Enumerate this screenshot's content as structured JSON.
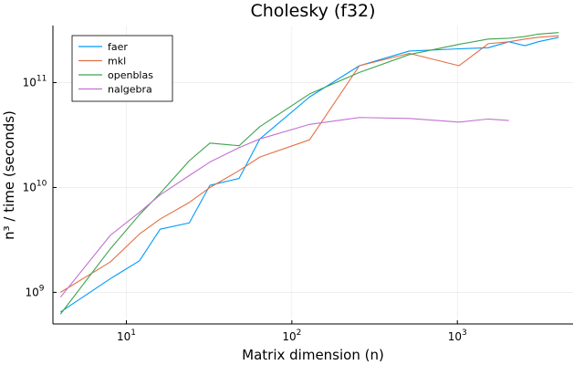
{
  "chart_data": {
    "type": "line",
    "title": "Cholesky (f32)",
    "xlabel": "Matrix dimension (n)",
    "ylabel": "n³ / time (seconds)",
    "xscale": "log",
    "yscale": "log",
    "xlim": [
      3.6,
      5000
    ],
    "ylim": [
      500000000,
      350000000000
    ],
    "x_ticks": [
      {
        "value": 10,
        "base": "10",
        "exp": "1"
      },
      {
        "value": 100,
        "base": "10",
        "exp": "2"
      },
      {
        "value": 1000,
        "base": "10",
        "exp": "3"
      }
    ],
    "y_ticks": [
      {
        "value": 1000000000,
        "base": "10",
        "exp": "9"
      },
      {
        "value": 10000000000,
        "base": "10",
        "exp": "10"
      },
      {
        "value": 100000000000,
        "base": "10",
        "exp": "11"
      }
    ],
    "grid": true,
    "legend_position": "top-left",
    "series": [
      {
        "name": "faer",
        "color": "#009af9",
        "x": [
          4,
          8,
          12,
          16,
          24,
          32,
          48,
          64,
          128,
          256,
          512,
          1024,
          1536,
          2048,
          2560,
          3072,
          4096
        ],
        "y": [
          650000000,
          1350000000,
          2000000000,
          4000000000,
          4600000000,
          10500000000,
          12200000000,
          29000000000,
          73000000000,
          145000000000,
          200000000000,
          210000000000,
          215000000000,
          245000000000,
          225000000000,
          245000000000,
          270000000000
        ]
      },
      {
        "name": "mkl",
        "color": "#e26f46",
        "x": [
          4,
          8,
          12,
          16,
          24,
          32,
          48,
          64,
          128,
          256,
          512,
          1024,
          1536,
          2048,
          2560,
          3072,
          4096
        ],
        "y": [
          1000000000,
          1950000000,
          3600000000,
          5000000000,
          7200000000,
          10000000000,
          14500000000,
          19500000000,
          28500000000,
          145000000000,
          190000000000,
          145000000000,
          235000000000,
          245000000000,
          260000000000,
          270000000000,
          280000000000
        ]
      },
      {
        "name": "openblas",
        "color": "#3da44d",
        "x": [
          4,
          8,
          12,
          16,
          24,
          32,
          48,
          64,
          128,
          256,
          512,
          1024,
          1536,
          2048,
          2560,
          3072,
          4096
        ],
        "y": [
          620000000,
          2600000000,
          5500000000,
          8800000000,
          18000000000,
          26500000000,
          25000000000,
          38000000000,
          78000000000,
          125000000000,
          185000000000,
          232000000000,
          260000000000,
          265000000000,
          275000000000,
          290000000000,
          300000000000
        ]
      },
      {
        "name": "nalgebra",
        "color": "#c271d2",
        "x": [
          4,
          8,
          12,
          16,
          24,
          32,
          48,
          64,
          128,
          256,
          512,
          1024,
          1536,
          2048
        ],
        "y": [
          900000000,
          3500000000,
          5800000000,
          8500000000,
          13000000000,
          17500000000,
          24000000000,
          29000000000,
          40000000000,
          46500000000,
          45500000000,
          42000000000,
          45000000000,
          43500000000
        ]
      }
    ]
  }
}
